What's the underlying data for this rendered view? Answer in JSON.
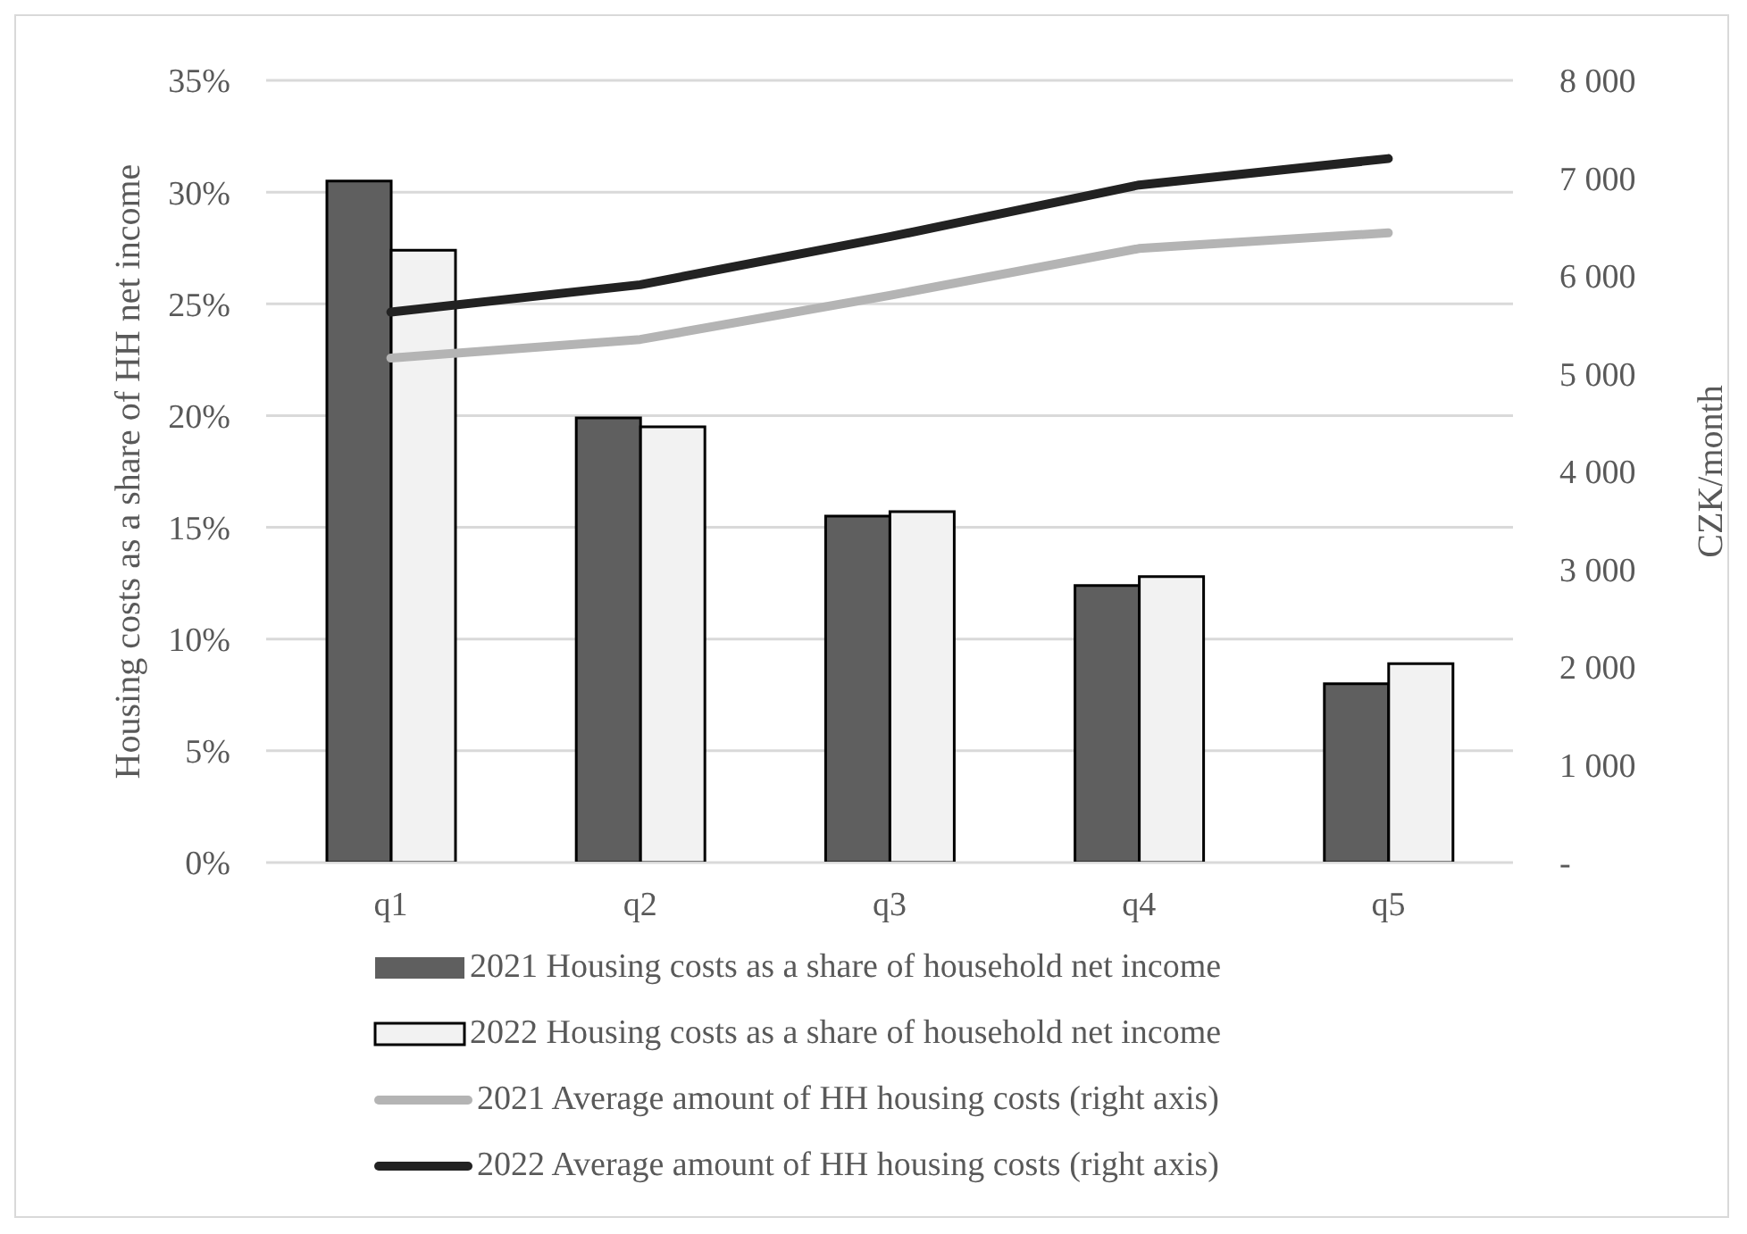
{
  "chart_data": {
    "type": "bar",
    "ylabel": "Housing costs as a share  of HH net  income",
    "y2label": "CZK/month",
    "categories": [
      "q1",
      "q2",
      "q3",
      "q4",
      "q5"
    ],
    "series": [
      {
        "name": "2021 Housing costs as a share of household net income",
        "color": "#5f5f5f",
        "values": [
          30.5,
          19.9,
          15.5,
          12.4,
          8.0
        ]
      },
      {
        "name": "2022 Housing costs as a share of household net income",
        "color": "#f2f2f2",
        "values": [
          27.4,
          19.5,
          15.7,
          12.8,
          8.9
        ]
      },
      {
        "name": "2021 Average amount of HH housing costs (right axis)",
        "type": "line",
        "axis": "y2",
        "color": "#b4b4b4",
        "values": [
          5160,
          5350,
          5800,
          6280,
          6440
        ]
      },
      {
        "name": "2022 Average amount of HH housing costs (right axis)",
        "type": "line",
        "axis": "y2",
        "color": "#222222",
        "values": [
          5630,
          5910,
          6400,
          6930,
          7200
        ]
      }
    ],
    "ylim": [
      0,
      35
    ],
    "yticks": [
      {
        "value": 0,
        "label": "0%"
      },
      {
        "value": 5,
        "label": "5%"
      },
      {
        "value": 10,
        "label": "10%"
      },
      {
        "value": 15,
        "label": "15%"
      },
      {
        "value": 20,
        "label": "20%"
      },
      {
        "value": 25,
        "label": "25%"
      },
      {
        "value": 30,
        "label": "30%"
      },
      {
        "value": 35,
        "label": "35%"
      }
    ],
    "y2lim": [
      0,
      8000
    ],
    "y2ticks": [
      {
        "value": 0,
        "label": "-"
      },
      {
        "value": 1000,
        "label": "1 000"
      },
      {
        "value": 2000,
        "label": "2 000"
      },
      {
        "value": 3000,
        "label": "3 000"
      },
      {
        "value": 4000,
        "label": "4 000"
      },
      {
        "value": 5000,
        "label": "5 000"
      },
      {
        "value": 6000,
        "label": "6 000"
      },
      {
        "value": 7000,
        "label": "7 000"
      },
      {
        "value": 8000,
        "label": "8 000"
      }
    ],
    "grid": "y",
    "legend": "bottom",
    "marker": "none",
    "line_style": "solid"
  }
}
